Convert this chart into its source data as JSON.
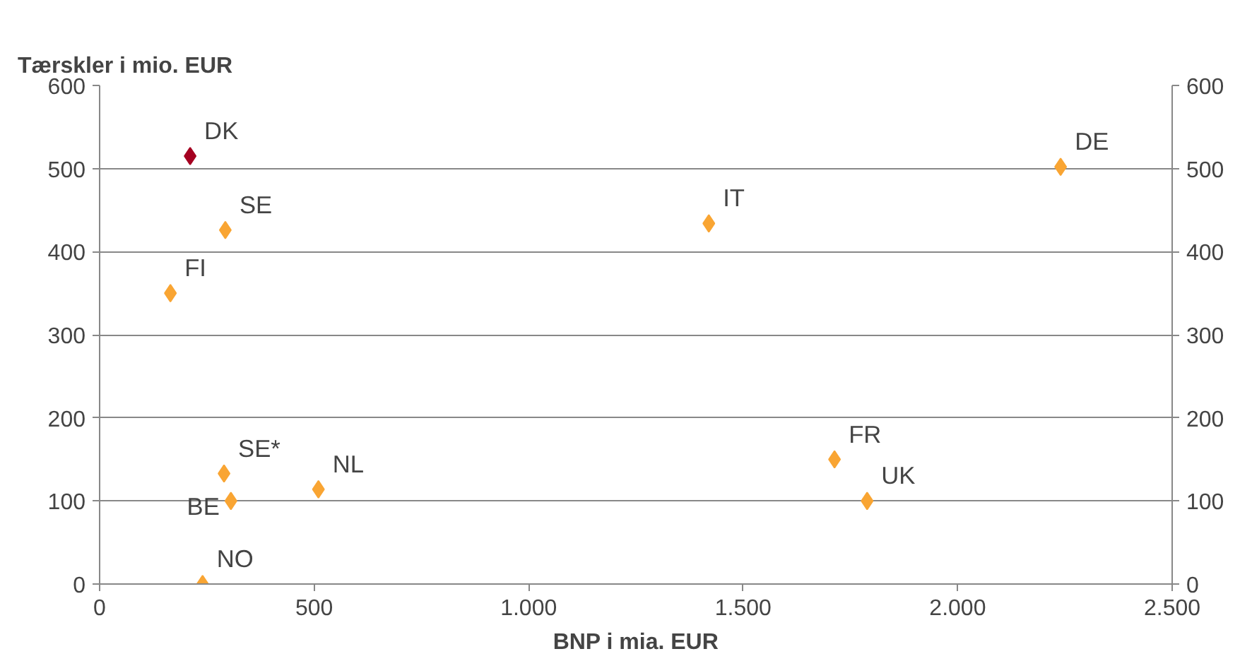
{
  "chart_data": {
    "type": "scatter",
    "xlabel": "BNP i mia. EUR",
    "ylabel": "Tærskler i mio. EUR",
    "series": [
      {
        "color": "#a50021",
        "x": [
          211
        ],
        "values": [
          515
        ]
      },
      {
        "color": "#f9a533",
        "x": [
          293,
          165,
          1420,
          2240,
          290,
          306,
          510,
          240,
          1713,
          1789
        ],
        "values": [
          426,
          350,
          434,
          502,
          133,
          100,
          114,
          0,
          150,
          100
        ]
      }
    ],
    "annotations": [
      {
        "text": "DK",
        "x": 211,
        "y": 515
      },
      {
        "text": "SE",
        "x": 293,
        "y": 426
      },
      {
        "text": "FI",
        "x": 165,
        "y": 350
      },
      {
        "text": "IT",
        "x": 1420,
        "y": 434
      },
      {
        "text": "DE",
        "x": 2240,
        "y": 502
      },
      {
        "text": "SE*",
        "x": 290,
        "y": 133
      },
      {
        "text": "BE",
        "x": 306,
        "y": 100
      },
      {
        "text": "NL",
        "x": 510,
        "y": 114
      },
      {
        "text": "NO",
        "x": 240,
        "y": 0
      },
      {
        "text": "FR",
        "x": 1713,
        "y": 150
      },
      {
        "text": "UK",
        "x": 1789,
        "y": 100
      }
    ],
    "xlim": [
      0,
      2500
    ],
    "ylim": [
      0,
      600
    ],
    "y2lim": [
      0,
      600
    ],
    "xticks": [
      0,
      500,
      {
        "value": 1000,
        "label": "1.000"
      },
      {
        "value": 1500,
        "label": "1.500"
      },
      {
        "value": 2000,
        "label": "2.000"
      },
      {
        "value": 2500,
        "label": "2.500"
      }
    ],
    "yticks": [
      0,
      100,
      200,
      300,
      400,
      500,
      600
    ],
    "y2ticks": [
      0,
      100,
      200,
      300,
      400,
      500,
      600
    ],
    "grid": "y",
    "marker": "diamond"
  }
}
